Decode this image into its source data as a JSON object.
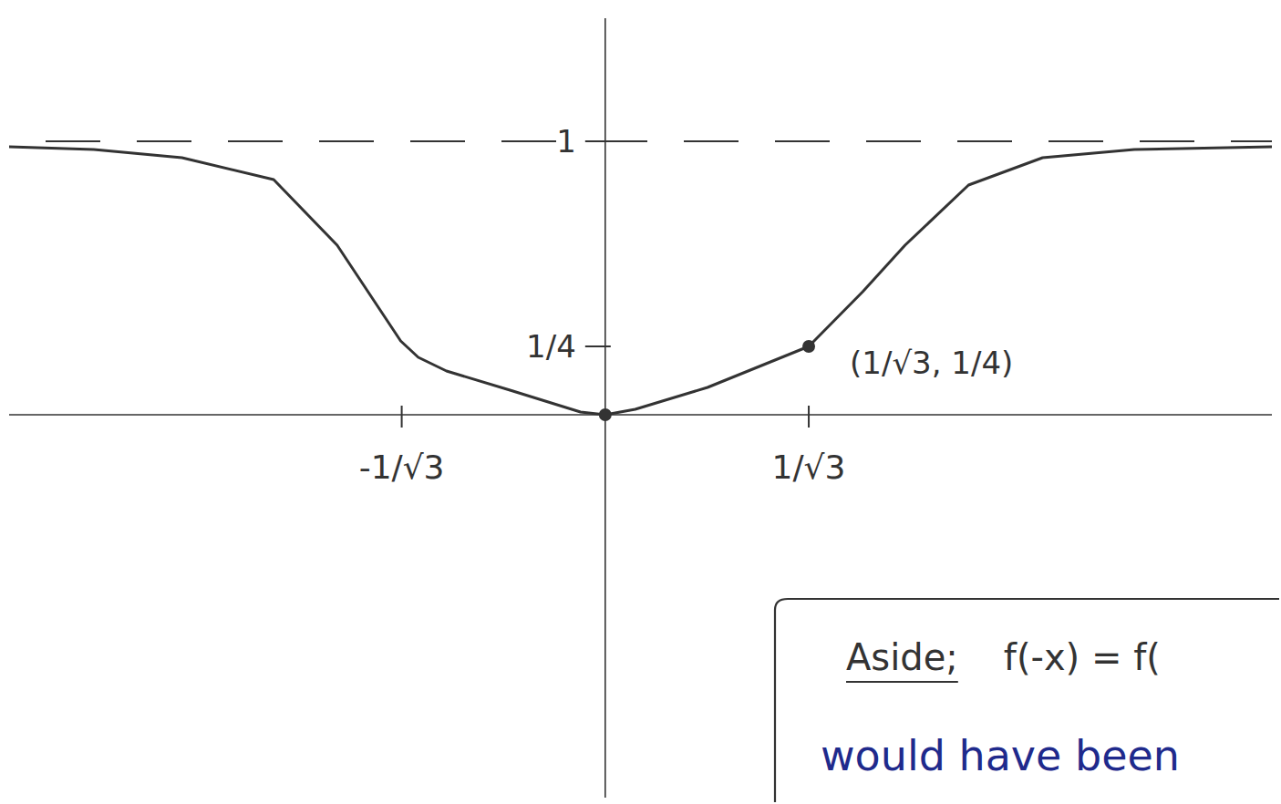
{
  "chart_data": {
    "type": "line",
    "color": "#333333",
    "x": [
      -1.69,
      -1.45,
      -1.2,
      -0.94,
      -0.76,
      -0.58,
      -0.53,
      -0.45,
      -0.27,
      -0.07,
      0,
      0.085,
      0.29,
      0.577,
      0.73,
      0.85,
      1.03,
      1.24,
      1.5,
      1.89
    ],
    "values": [
      0.98,
      0.97,
      0.94,
      0.86,
      0.62,
      0.27,
      0.21,
      0.16,
      0.09,
      0.01,
      0,
      0.02,
      0.1,
      0.25,
      0.45,
      0.62,
      0.84,
      0.94,
      0.97,
      0.98
    ],
    "xlim": [
      -1.69,
      1.89
    ],
    "ylim": [
      -1.4,
      1.45
    ],
    "xticks": [
      {
        "value": -0.577,
        "label": "-1/√3"
      },
      {
        "value": 0.577,
        "label": "1/√3"
      }
    ],
    "yticks": [
      {
        "value": 0.25,
        "label": "1/4"
      },
      {
        "value": 1,
        "label": "1"
      }
    ],
    "asymptote": 1,
    "points": [
      {
        "x": 0,
        "y": 0
      },
      {
        "x": 0.577,
        "y": 0.25
      }
    ],
    "annotations": [
      {
        "text": "(1/√3, 1/4)",
        "x": 0.577,
        "y": 0.25
      }
    ],
    "aside": {
      "title": "Aside;",
      "text": "f(-x) = f(",
      "note": "would have been"
    }
  }
}
